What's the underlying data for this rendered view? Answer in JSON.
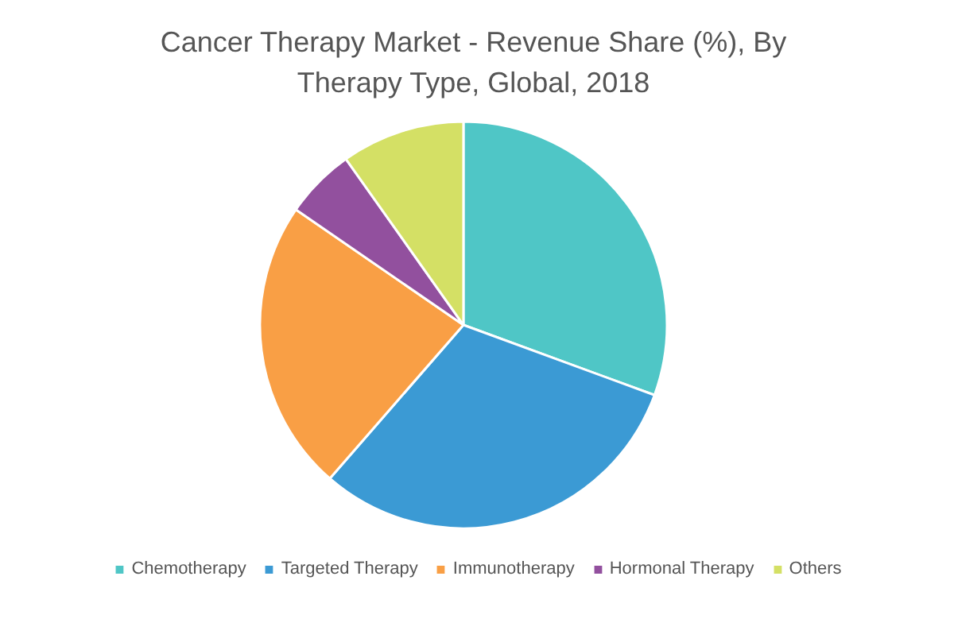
{
  "chart_data": {
    "type": "pie",
    "title": "Cancer Therapy Market -  Revenue Share (%), By Therapy Type, Global,  2018",
    "categories": [
      "Chemotherapy",
      "Targeted Therapy",
      "Immunotherapy",
      "Hormonal Therapy",
      "Others"
    ],
    "values": [
      30.6,
      30.8,
      23.2,
      5.6,
      9.8
    ],
    "colors": [
      "#4fc6c6",
      "#3b9ad4",
      "#f99f45",
      "#92509e",
      "#d4e065"
    ],
    "legend": "bottom"
  }
}
